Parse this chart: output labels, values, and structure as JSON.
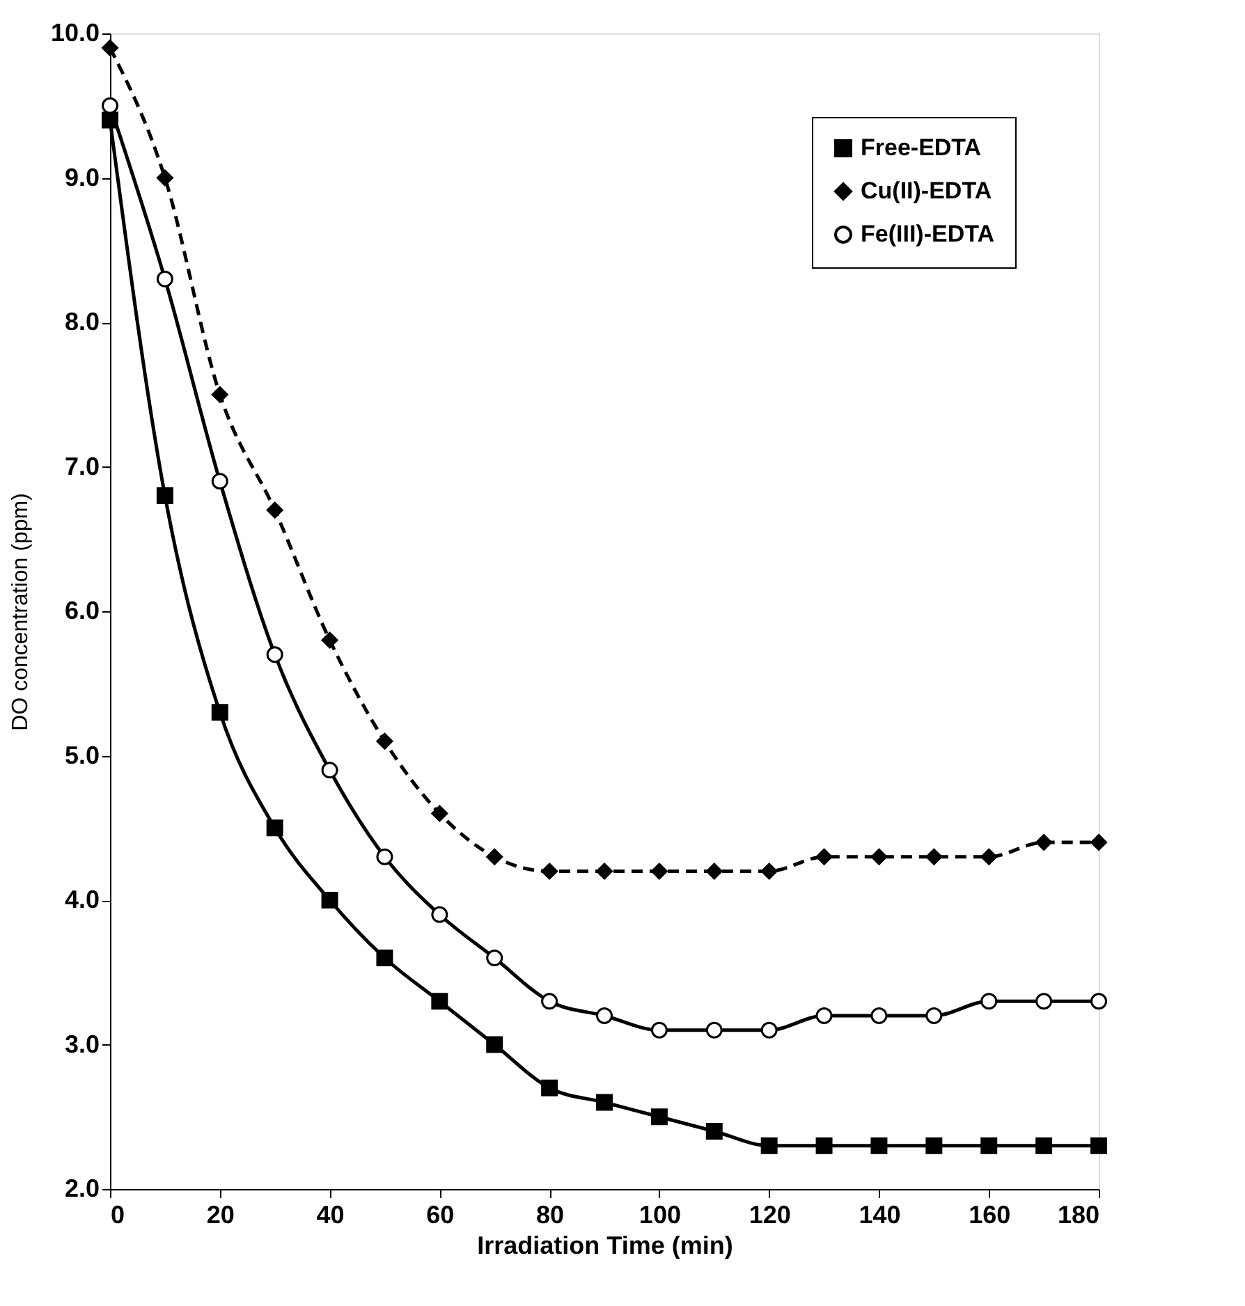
{
  "chart_data": {
    "type": "line",
    "xlabel": "Irradiation Time (min)",
    "ylabel": "DO concentration (ppm)",
    "x": [
      0,
      10,
      20,
      30,
      40,
      50,
      60,
      70,
      80,
      90,
      100,
      110,
      120,
      130,
      140,
      150,
      160,
      170,
      180
    ],
    "series": [
      {
        "name": "Free-EDTA",
        "color": "#000000",
        "marker": "square",
        "line_style": "solid",
        "values": [
          9.4,
          6.8,
          5.3,
          4.5,
          4.0,
          3.6,
          3.3,
          3.0,
          2.7,
          2.6,
          2.5,
          2.4,
          2.3,
          2.3,
          2.3,
          2.3,
          2.3,
          2.3,
          2.3
        ]
      },
      {
        "name": "Cu(II)-EDTA",
        "color": "#000000",
        "marker": "diamond",
        "line_style": "dashed",
        "values": [
          9.9,
          9.0,
          7.5,
          6.7,
          5.8,
          5.1,
          4.6,
          4.3,
          4.2,
          4.2,
          4.2,
          4.2,
          4.2,
          4.3,
          4.3,
          4.3,
          4.3,
          4.4,
          4.4
        ]
      },
      {
        "name": "Fe(III)-EDTA",
        "color": "#000000",
        "marker": "circle",
        "line_style": "solid",
        "values": [
          9.5,
          8.3,
          6.9,
          5.7,
          4.9,
          4.3,
          3.9,
          3.6,
          3.3,
          3.2,
          3.1,
          3.1,
          3.1,
          3.2,
          3.2,
          3.2,
          3.3,
          3.3,
          3.3
        ]
      }
    ],
    "xlim": [
      0,
      180
    ],
    "xticks": [
      0,
      20,
      40,
      60,
      80,
      100,
      120,
      140,
      160,
      180
    ],
    "ylim": [
      2,
      10
    ],
    "yticks": [
      {
        "value": 2,
        "label": "2.0"
      },
      {
        "value": 3,
        "label": "3.0"
      },
      {
        "value": 4,
        "label": "4.0"
      },
      {
        "value": 5,
        "label": "5.0"
      },
      {
        "value": 6,
        "label": "6.0"
      },
      {
        "value": 7,
        "label": "7.0"
      },
      {
        "value": 8,
        "label": "8.0"
      },
      {
        "value": 9,
        "label": "9.0"
      },
      {
        "value": 10,
        "label": "10.0"
      }
    ],
    "grid": false,
    "legend": "top right"
  }
}
